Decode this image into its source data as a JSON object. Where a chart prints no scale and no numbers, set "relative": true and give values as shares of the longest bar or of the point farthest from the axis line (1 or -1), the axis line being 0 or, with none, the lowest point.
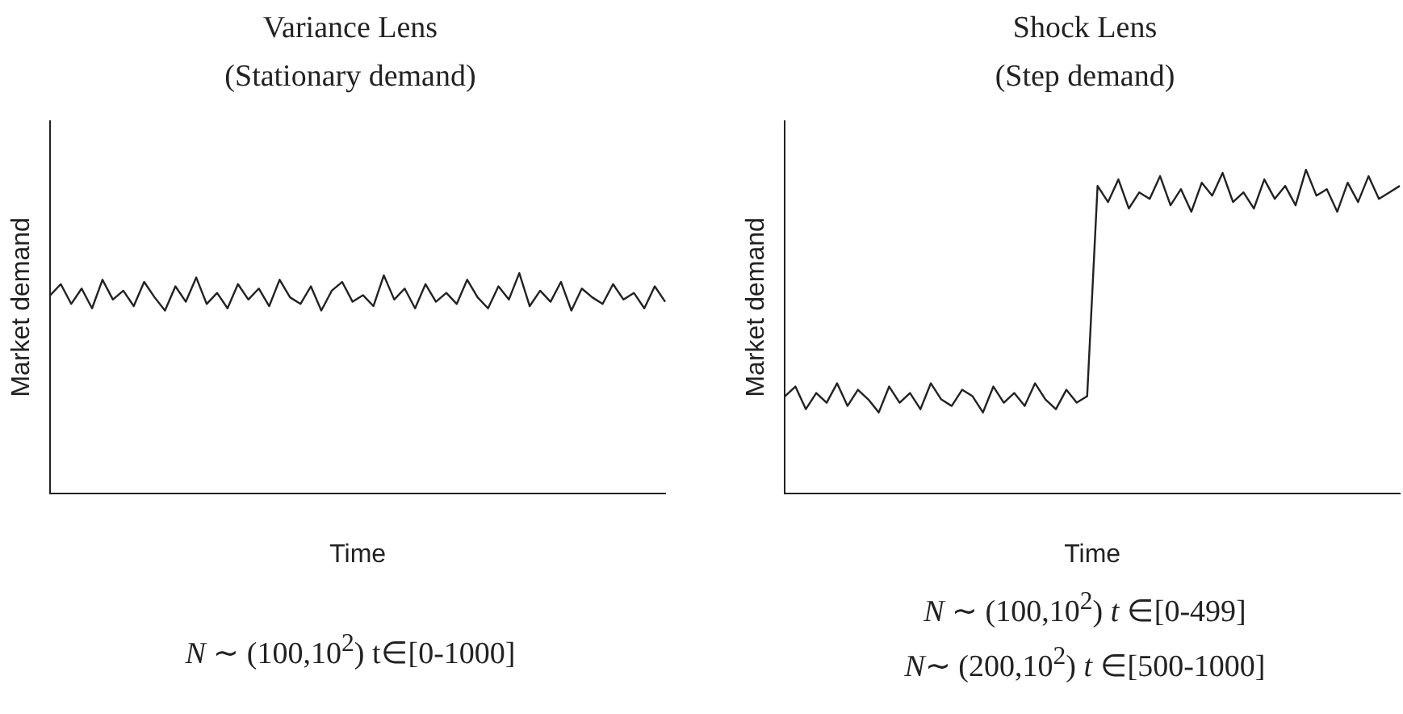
{
  "chart_data": [
    {
      "type": "line",
      "title": "Variance Lens",
      "subtitle": "(Stationary demand)",
      "xlabel": "Time",
      "ylabel": "Market demand",
      "relative": true,
      "grid": false,
      "legend": false,
      "marker": "none",
      "categories": [
        null,
        null,
        null,
        null,
        null,
        null,
        null,
        null,
        null,
        null,
        null,
        null,
        null,
        null,
        null,
        null,
        null,
        null,
        null,
        null,
        null,
        null,
        null,
        null,
        null,
        null,
        null,
        null,
        null,
        null,
        null,
        null,
        null,
        null,
        null,
        null,
        null,
        null,
        null,
        null,
        null,
        null,
        null,
        null,
        null,
        null,
        null,
        null,
        null,
        null,
        null,
        null,
        null,
        null,
        null,
        null,
        null,
        null,
        null,
        null
      ],
      "series": [
        {
          "color": "#222222",
          "values": [
            0.9,
            0.95,
            0.86,
            0.93,
            0.84,
            0.97,
            0.88,
            0.92,
            0.85,
            0.96,
            0.89,
            0.83,
            0.94,
            0.87,
            0.98,
            0.86,
            0.91,
            0.84,
            0.95,
            0.88,
            0.93,
            0.85,
            0.97,
            0.89,
            0.86,
            0.94,
            0.83,
            0.92,
            0.96,
            0.87,
            0.9,
            0.85,
            0.99,
            0.88,
            0.93,
            0.84,
            0.95,
            0.87,
            0.91,
            0.86,
            0.97,
            0.89,
            0.84,
            0.94,
            0.88,
            1.0,
            0.85,
            0.92,
            0.87,
            0.96,
            0.83,
            0.93,
            0.89,
            0.86,
            0.95,
            0.88,
            0.91,
            0.84,
            0.94,
            0.87
          ]
        }
      ],
      "annotations": [
        "N ∼ (100,10$^{2}$) t∈[0-1000]"
      ]
    },
    {
      "type": "line",
      "title": "Shock Lens",
      "subtitle": "(Step demand)",
      "xlabel": "Time",
      "ylabel": "Market demand",
      "relative": true,
      "grid": false,
      "legend": false,
      "marker": "none",
      "categories": [
        null,
        null,
        null,
        null,
        null,
        null,
        null,
        null,
        null,
        null,
        null,
        null,
        null,
        null,
        null,
        null,
        null,
        null,
        null,
        null,
        null,
        null,
        null,
        null,
        null,
        null,
        null,
        null,
        null,
        null,
        null,
        null,
        null,
        null,
        null,
        null,
        null,
        null,
        null,
        null,
        null,
        null,
        null,
        null,
        null,
        null,
        null,
        null,
        null,
        null,
        null,
        null,
        null,
        null,
        null,
        null,
        null,
        null,
        null,
        null
      ],
      "series": [
        {
          "color": "#222222",
          "values": [
            0.3,
            0.33,
            0.26,
            0.31,
            0.28,
            0.34,
            0.27,
            0.32,
            0.29,
            0.25,
            0.33,
            0.28,
            0.31,
            0.26,
            0.34,
            0.29,
            0.27,
            0.32,
            0.3,
            0.25,
            0.33,
            0.28,
            0.31,
            0.27,
            0.34,
            0.29,
            0.26,
            0.32,
            0.28,
            0.3,
            0.95,
            0.9,
            0.97,
            0.88,
            0.93,
            0.91,
            0.98,
            0.89,
            0.94,
            0.87,
            0.96,
            0.92,
            0.99,
            0.9,
            0.93,
            0.88,
            0.97,
            0.91,
            0.95,
            0.89,
            1.0,
            0.92,
            0.94,
            0.87,
            0.96,
            0.9,
            0.98,
            0.91,
            0.93,
            0.95
          ]
        }
      ],
      "annotations": [
        "N ∼ (100,10$^{2}$) t ∈[0-499]",
        "N∼ (200,10$^{2}$) t ∈[500-1000]"
      ]
    }
  ]
}
